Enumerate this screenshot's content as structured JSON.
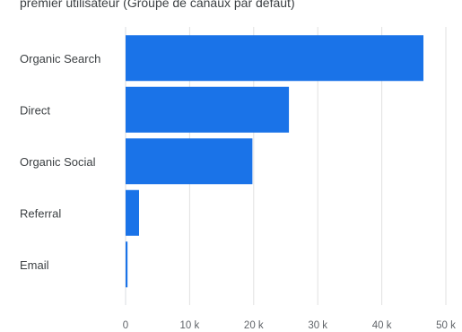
{
  "header": {
    "subtitle": "premier utilisateur (Groupe de canaux par défaut)"
  },
  "colors": {
    "bar": "#1a73e8",
    "grid": "#e0e0e0",
    "axis": "#dadce0"
  },
  "chart_data": {
    "type": "bar",
    "orientation": "horizontal",
    "title": "premier utilisateur (Groupe de canaux par défaut)",
    "categories": [
      "Organic Search",
      "Direct",
      "Organic Social",
      "Referral",
      "Email"
    ],
    "values": [
      46500,
      25500,
      19800,
      2100,
      300
    ],
    "xlim": [
      0,
      50000
    ],
    "xticks": [
      0,
      10000,
      20000,
      30000,
      40000,
      50000
    ],
    "xtick_labels": [
      "0",
      "10 k",
      "20 k",
      "30 k",
      "40 k",
      "50 k"
    ],
    "grid": true
  }
}
